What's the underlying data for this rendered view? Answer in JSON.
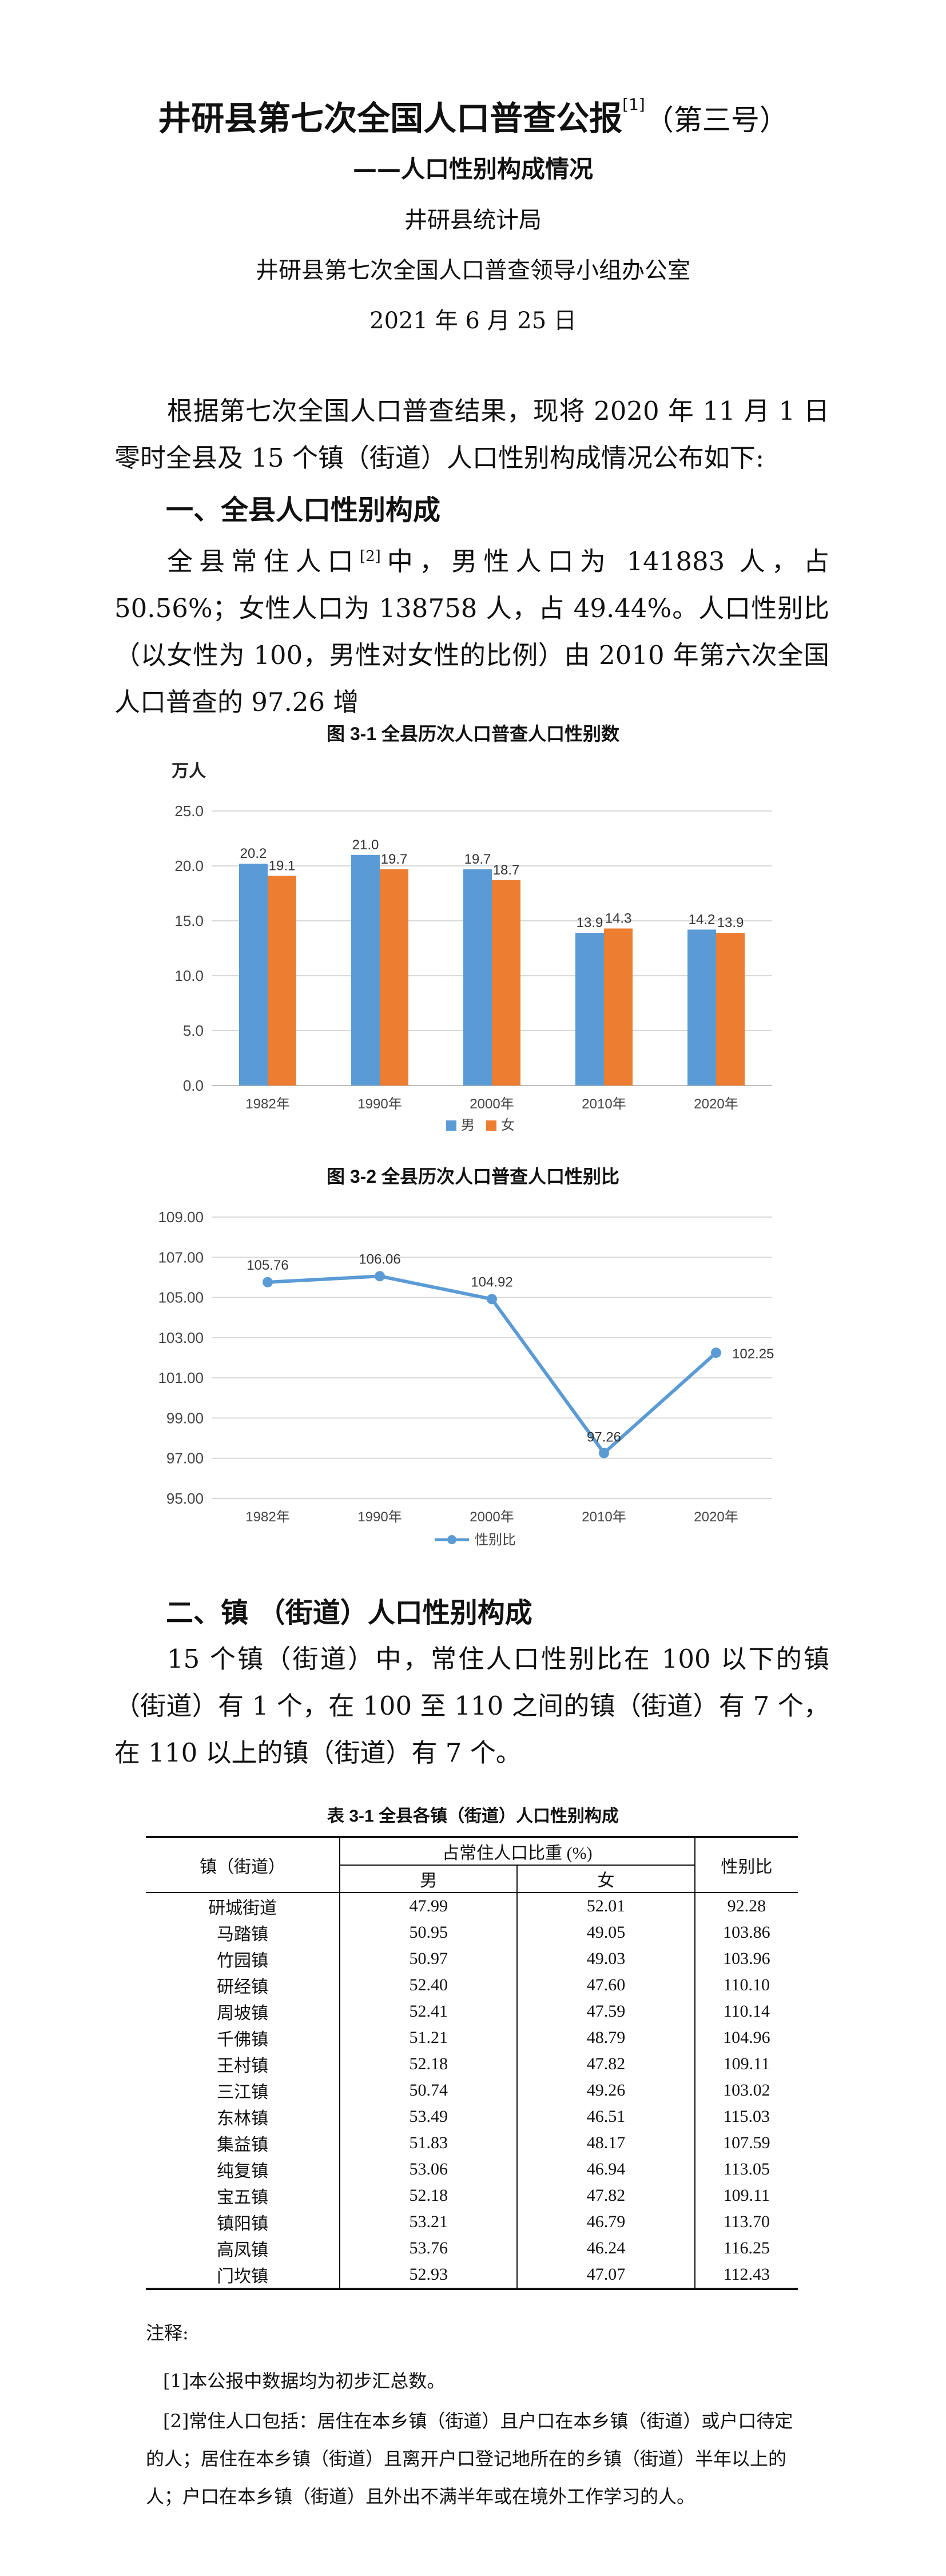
{
  "header": {
    "title_main": "井研县第七次全国人口普查公报",
    "title_note": "[1]",
    "title_tail": "（第三号）",
    "subtitle": "——人口性别构成情况",
    "issuer1": "井研县统计局",
    "issuer2": "井研县第七次全国人口普查领导小组办公室",
    "date": "2021 年 6 月 25 日"
  },
  "intro": "根据第七次全国人口普查结果，现将 2020 年 11 月 1 日零时全县及 15 个镇（街道）人口性别构成情况公布如下:",
  "section1": {
    "heading": "一、全县人口性别构成",
    "text_a": "全县常住人口",
    "note": "[2]",
    "text_b": "中，男性人口为 141883 人，占 50.56%；女性人口为 138758 人，占 49.44%。人口性别比（以女性为 100，男性对女性的比例）由 2010 年第六次全国人口普查的 97.26 增"
  },
  "fig1": {
    "title": "图 3-1    全县历次人口普查人口性别数",
    "unit": "万人",
    "legend_male": "男",
    "legend_female": "女"
  },
  "fig2": {
    "title": "图 3-2    全县历次人口普查人口性别比",
    "legend": "性别比"
  },
  "chart_data": [
    {
      "type": "bar",
      "title": "图 3-1    全县历次人口普查人口性别数",
      "ylabel": "万人",
      "categories": [
        "1982年",
        "1990年",
        "2000年",
        "2010年",
        "2020年"
      ],
      "series": [
        {
          "name": "男",
          "values": [
            20.2,
            21.0,
            19.7,
            13.9,
            14.2
          ]
        },
        {
          "name": "女",
          "values": [
            19.1,
            19.7,
            18.7,
            14.3,
            13.9
          ]
        }
      ],
      "ylim": [
        0,
        25
      ],
      "yticks": [
        "0.0",
        "5.0",
        "10.0",
        "15.0",
        "20.0",
        "25.0"
      ],
      "labels": [
        [
          "20.2",
          "21.0",
          "19.7",
          "13.9",
          "14.2"
        ],
        [
          "19.1",
          "19.7",
          "18.7",
          "14.3",
          "13.9"
        ]
      ],
      "grid": true,
      "legend": "bottom-center",
      "colors": [
        "#5B9BD5",
        "#ED7D31"
      ]
    },
    {
      "type": "line",
      "title": "图 3-2    全县历次人口普查人口性别比",
      "categories": [
        "1982年",
        "1990年",
        "2000年",
        "2010年",
        "2020年"
      ],
      "series": [
        {
          "name": "性别比",
          "values": [
            105.76,
            106.06,
            104.92,
            97.26,
            102.25
          ]
        }
      ],
      "ylim": [
        95,
        109
      ],
      "yticks": [
        "95.00",
        "97.00",
        "99.00",
        "101.00",
        "103.00",
        "105.00",
        "107.00",
        "109.00"
      ],
      "labels": [
        "105.76",
        "106.06",
        "104.92",
        "97.26",
        "102.25"
      ],
      "grid": true,
      "legend": "bottom-center",
      "colors": [
        "#5B9BD5"
      ]
    }
  ],
  "section2": {
    "heading": "二、镇 （街道）人口性别构成",
    "text": "15 个镇（街道）中，常住人口性别比在 100 以下的镇（街道）有 1 个，在 100 至 110 之间的镇（街道）有 7 个，在 110 以上的镇（街道）有 7 个。"
  },
  "table": {
    "title": "表 3-1  全县各镇（街道）人口性别构成",
    "col_town": "镇（街道）",
    "col_share": "占常住人口比重 (%)",
    "col_male": "男",
    "col_female": "女",
    "col_ratio": "性别比",
    "rows": [
      {
        "town": "研城街道",
        "male": "47.99",
        "female": "52.01",
        "ratio": "92.28"
      },
      {
        "town": "马踏镇",
        "male": "50.95",
        "female": "49.05",
        "ratio": "103.86"
      },
      {
        "town": "竹园镇",
        "male": "50.97",
        "female": "49.03",
        "ratio": "103.96"
      },
      {
        "town": "研经镇",
        "male": "52.40",
        "female": "47.60",
        "ratio": "110.10"
      },
      {
        "town": "周坡镇",
        "male": "52.41",
        "female": "47.59",
        "ratio": "110.14"
      },
      {
        "town": "千佛镇",
        "male": "51.21",
        "female": "48.79",
        "ratio": "104.96"
      },
      {
        "town": "王村镇",
        "male": "52.18",
        "female": "47.82",
        "ratio": "109.11"
      },
      {
        "town": "三江镇",
        "male": "50.74",
        "female": "49.26",
        "ratio": "103.02"
      },
      {
        "town": "东林镇",
        "male": "53.49",
        "female": "46.51",
        "ratio": "115.03"
      },
      {
        "town": "集益镇",
        "male": "51.83",
        "female": "48.17",
        "ratio": "107.59"
      },
      {
        "town": "纯复镇",
        "male": "53.06",
        "female": "46.94",
        "ratio": "113.05"
      },
      {
        "town": "宝五镇",
        "male": "52.18",
        "female": "47.82",
        "ratio": "109.11"
      },
      {
        "town": "镇阳镇",
        "male": "53.21",
        "female": "46.79",
        "ratio": "113.70"
      },
      {
        "town": "高凤镇",
        "male": "53.76",
        "female": "46.24",
        "ratio": "116.25"
      },
      {
        "town": "门坎镇",
        "male": "52.93",
        "female": "47.07",
        "ratio": "112.43"
      }
    ]
  },
  "notes": {
    "label": "注释:",
    "n1": "[1]本公报中数据均为初步汇总数。",
    "n2": "[2]常住人口包括：居住在本乡镇（街道）且户口在本乡镇（街道）或户口待定的人；居住在本乡镇（街道）且离开户口登记地所在的乡镇（街道）半年以上的人；户口在本乡镇（街道）且外出不满半年或在境外工作学习的人。"
  }
}
